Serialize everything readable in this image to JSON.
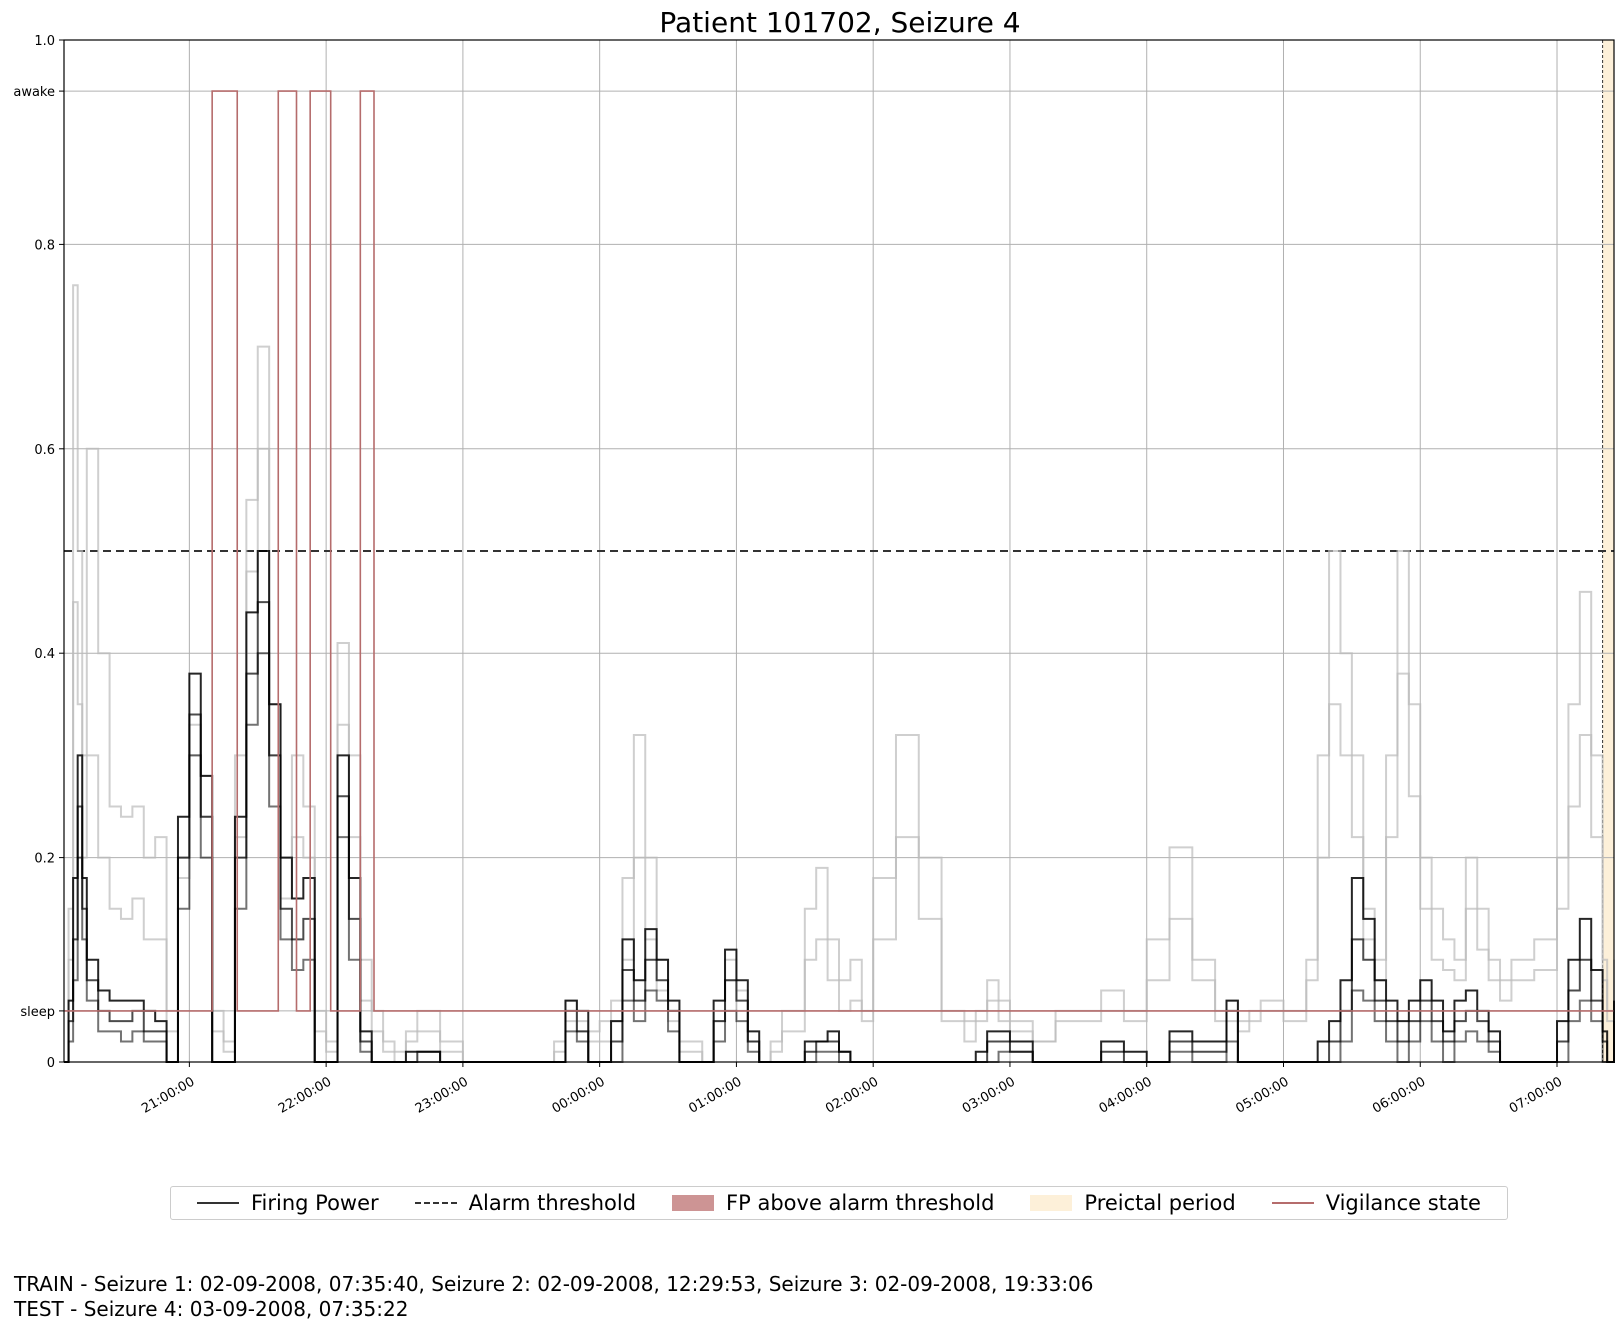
{
  "chart_data": {
    "type": "line",
    "title": "Patient 101702, Seizure 4",
    "xlabel": "",
    "ylabel": "",
    "x_ticks": [
      "21:00:00",
      "22:00:00",
      "23:00:00",
      "00:00:00",
      "01:00:00",
      "02:00:00",
      "03:00:00",
      "04:00:00",
      "05:00:00",
      "06:00:00",
      "07:00:00"
    ],
    "x_range": [
      "20:05:00",
      "07:25:00"
    ],
    "y_ticks": [
      {
        "value": 0,
        "label": "0"
      },
      {
        "value": 0.05,
        "label": "sleep"
      },
      {
        "value": 0.2,
        "label": "0.2"
      },
      {
        "value": 0.4,
        "label": "0.4"
      },
      {
        "value": 0.6,
        "label": "0.6"
      },
      {
        "value": 0.8,
        "label": "0.8"
      },
      {
        "value": 0.95,
        "label": "awake"
      },
      {
        "value": 1.0,
        "label": "1.0"
      }
    ],
    "ylim": [
      0,
      1
    ],
    "grid": true,
    "legend_position": "bottom-center",
    "alarm_threshold": 0.5,
    "preictal_period": {
      "start": "07:20:00",
      "end": "07:25:00"
    },
    "series": [
      {
        "name": "Firing Power",
        "times": [
          "20:05",
          "20:07",
          "20:09",
          "20:11",
          "20:13",
          "20:15",
          "20:20",
          "20:25",
          "20:30",
          "20:35",
          "20:40",
          "20:45",
          "20:50",
          "20:55",
          "21:00",
          "21:05",
          "21:10",
          "21:15",
          "21:20",
          "21:25",
          "21:30",
          "21:35",
          "21:40",
          "21:45",
          "21:50",
          "21:55",
          "22:00",
          "22:05",
          "22:10",
          "22:15",
          "22:20",
          "22:25",
          "22:30",
          "22:35",
          "22:40",
          "22:50",
          "23:00",
          "23:20",
          "23:40",
          "23:45",
          "23:50",
          "23:55",
          "00:00",
          "00:05",
          "00:10",
          "00:15",
          "00:20",
          "00:25",
          "00:30",
          "00:35",
          "00:40",
          "00:45",
          "00:50",
          "00:55",
          "01:00",
          "01:05",
          "01:10",
          "01:15",
          "01:20",
          "01:30",
          "01:35",
          "01:40",
          "01:45",
          "01:50",
          "01:55",
          "02:00",
          "02:10",
          "02:20",
          "02:30",
          "02:40",
          "02:45",
          "02:50",
          "02:55",
          "03:00",
          "03:10",
          "03:20",
          "03:40",
          "03:50",
          "04:00",
          "04:10",
          "04:20",
          "04:30",
          "04:35",
          "04:40",
          "04:45",
          "04:50",
          "05:00",
          "05:10",
          "05:15",
          "05:20",
          "05:25",
          "05:30",
          "05:35",
          "05:40",
          "05:45",
          "05:50",
          "05:55",
          "06:00",
          "06:05",
          "06:10",
          "06:15",
          "06:20",
          "06:25",
          "06:30",
          "06:35",
          "06:40",
          "06:50",
          "07:00",
          "07:05",
          "07:10",
          "07:15",
          "07:20",
          "07:22",
          "07:25"
        ],
        "runs": [
          [
            0.0,
            0.02,
            0.08,
            0.2,
            0.12,
            0.06,
            0.03,
            0.03,
            0.02,
            0.03,
            0.02,
            0.02,
            0.0,
            0.15,
            0.3,
            0.2,
            0.0,
            0.0,
            0.15,
            0.33,
            0.4,
            0.25,
            0.12,
            0.09,
            0.1,
            0.0,
            0.0,
            0.22,
            0.1,
            0.01,
            0.0,
            0.0,
            0.0,
            0.0,
            0.0,
            0.0,
            0.0,
            0.0,
            0.0,
            0.03,
            0.02,
            0.0,
            0.0,
            0.0,
            0.06,
            0.04,
            0.07,
            0.06,
            0.03,
            0.0,
            0.0,
            0.0,
            0.02,
            0.05,
            0.04,
            0.01,
            0.0,
            0.0,
            0.0,
            0.0,
            0.01,
            0.01,
            0.0,
            0.0,
            0.0,
            0.0,
            0.0,
            0.0,
            0.0,
            0.0,
            0.0,
            0.0,
            0.01,
            0.01,
            0.0,
            0.0,
            0.0,
            0.0,
            0.0,
            0.01,
            0.0,
            0.0,
            0.02,
            0.0,
            0.0,
            0.0,
            0.0,
            0.0,
            0.0,
            0.0,
            0.02,
            0.07,
            0.06,
            0.04,
            0.02,
            0.0,
            0.02,
            0.04,
            0.02,
            0.0,
            0.02,
            0.03,
            0.02,
            0.01,
            0.0,
            0.0,
            0.0,
            0.0,
            0.04,
            0.06,
            0.04,
            0.0,
            0.0,
            0.02
          ],
          [
            0.0,
            0.04,
            0.12,
            0.25,
            0.15,
            0.08,
            0.05,
            0.04,
            0.04,
            0.05,
            0.03,
            0.03,
            0.0,
            0.2,
            0.34,
            0.24,
            0.0,
            0.0,
            0.2,
            0.38,
            0.45,
            0.3,
            0.15,
            0.12,
            0.14,
            0.0,
            0.0,
            0.26,
            0.14,
            0.02,
            0.0,
            0.0,
            0.0,
            0.0,
            0.01,
            0.0,
            0.0,
            0.0,
            0.0,
            0.05,
            0.03,
            0.0,
            0.0,
            0.02,
            0.09,
            0.06,
            0.1,
            0.08,
            0.05,
            0.0,
            0.0,
            0.0,
            0.04,
            0.08,
            0.06,
            0.02,
            0.0,
            0.0,
            0.0,
            0.01,
            0.02,
            0.02,
            0.01,
            0.0,
            0.0,
            0.0,
            0.0,
            0.0,
            0.0,
            0.0,
            0.0,
            0.02,
            0.02,
            0.01,
            0.0,
            0.0,
            0.01,
            0.0,
            0.0,
            0.02,
            0.01,
            0.01,
            0.05,
            0.0,
            0.0,
            0.0,
            0.0,
            0.0,
            0.0,
            0.02,
            0.05,
            0.12,
            0.1,
            0.06,
            0.04,
            0.02,
            0.04,
            0.06,
            0.04,
            0.02,
            0.04,
            0.05,
            0.04,
            0.02,
            0.0,
            0.0,
            0.0,
            0.02,
            0.07,
            0.1,
            0.06,
            0.02,
            0.0,
            0.04
          ],
          [
            0.0,
            0.06,
            0.18,
            0.3,
            0.18,
            0.1,
            0.07,
            0.06,
            0.06,
            0.06,
            0.05,
            0.04,
            0.0,
            0.24,
            0.38,
            0.28,
            0.0,
            0.0,
            0.24,
            0.44,
            0.5,
            0.35,
            0.2,
            0.16,
            0.18,
            0.0,
            0.0,
            0.3,
            0.18,
            0.03,
            0.0,
            0.0,
            0.0,
            0.01,
            0.01,
            0.0,
            0.0,
            0.0,
            0.0,
            0.06,
            0.05,
            0.0,
            0.0,
            0.04,
            0.12,
            0.08,
            0.13,
            0.1,
            0.06,
            0.0,
            0.0,
            0.0,
            0.06,
            0.11,
            0.08,
            0.03,
            0.0,
            0.0,
            0.0,
            0.02,
            0.02,
            0.03,
            0.01,
            0.0,
            0.0,
            0.0,
            0.0,
            0.0,
            0.0,
            0.0,
            0.01,
            0.03,
            0.03,
            0.02,
            0.0,
            0.0,
            0.02,
            0.01,
            0.0,
            0.03,
            0.02,
            0.02,
            0.06,
            0.0,
            0.0,
            0.0,
            0.0,
            0.0,
            0.02,
            0.04,
            0.08,
            0.18,
            0.14,
            0.08,
            0.06,
            0.04,
            0.06,
            0.08,
            0.06,
            0.03,
            0.06,
            0.07,
            0.05,
            0.03,
            0.0,
            0.0,
            0.0,
            0.04,
            0.1,
            0.14,
            0.09,
            0.03,
            0.0,
            0.06
          ]
        ]
      },
      {
        "name": "",
        "light_runs": [
          [
            0.0,
            0.15,
            0.76,
            0.5,
            0.3,
            0.6,
            0.4,
            0.25,
            0.24,
            0.25,
            0.2,
            0.22,
            0.05,
            0.2,
            0.33,
            0.28,
            0.05,
            0.02,
            0.3,
            0.55,
            0.7,
            0.35,
            0.2,
            0.3,
            0.25,
            0.05,
            0.02,
            0.41,
            0.3,
            0.1,
            0.05,
            0.02,
            0.01,
            0.03,
            0.05,
            0.02,
            0.0,
            0.0,
            0.02,
            0.06,
            0.04,
            0.03,
            0.04,
            0.06,
            0.18,
            0.32,
            0.2,
            0.1,
            0.05,
            0.02,
            0.02,
            0.0,
            0.05,
            0.1,
            0.07,
            0.02,
            0.0,
            0.02,
            0.05,
            0.15,
            0.19,
            0.12,
            0.08,
            0.1,
            0.05,
            0.18,
            0.32,
            0.2,
            0.05,
            0.04,
            0.05,
            0.08,
            0.06,
            0.04,
            0.02,
            0.05,
            0.07,
            0.05,
            0.12,
            0.21,
            0.1,
            0.05,
            0.06,
            0.04,
            0.05,
            0.06,
            0.05,
            0.1,
            0.3,
            0.5,
            0.4,
            0.3,
            0.15,
            0.1,
            0.3,
            0.5,
            0.35,
            0.2,
            0.15,
            0.12,
            0.1,
            0.2,
            0.15,
            0.1,
            0.08,
            0.1,
            0.12,
            0.2,
            0.35,
            0.46,
            0.3,
            0.1,
            0.05,
            0.1
          ],
          [
            0.0,
            0.1,
            0.45,
            0.35,
            0.2,
            0.3,
            0.2,
            0.15,
            0.14,
            0.16,
            0.12,
            0.12,
            0.03,
            0.18,
            0.3,
            0.24,
            0.03,
            0.01,
            0.22,
            0.48,
            0.6,
            0.3,
            0.16,
            0.22,
            0.2,
            0.03,
            0.01,
            0.33,
            0.22,
            0.06,
            0.03,
            0.01,
            0.0,
            0.02,
            0.03,
            0.01,
            0.0,
            0.0,
            0.01,
            0.04,
            0.03,
            0.02,
            0.02,
            0.04,
            0.1,
            0.2,
            0.12,
            0.07,
            0.04,
            0.01,
            0.01,
            0.0,
            0.04,
            0.08,
            0.05,
            0.02,
            0.0,
            0.01,
            0.03,
            0.1,
            0.12,
            0.08,
            0.05,
            0.06,
            0.04,
            0.12,
            0.22,
            0.14,
            0.04,
            0.02,
            0.04,
            0.06,
            0.04,
            0.03,
            0.02,
            0.04,
            0.05,
            0.04,
            0.08,
            0.14,
            0.08,
            0.04,
            0.04,
            0.03,
            0.04,
            0.05,
            0.04,
            0.08,
            0.2,
            0.35,
            0.3,
            0.22,
            0.12,
            0.08,
            0.22,
            0.38,
            0.26,
            0.15,
            0.1,
            0.09,
            0.08,
            0.15,
            0.11,
            0.08,
            0.06,
            0.08,
            0.09,
            0.15,
            0.25,
            0.32,
            0.22,
            0.08,
            0.04,
            0.08
          ]
        ]
      },
      {
        "name": "Vigilance state",
        "steps": [
          {
            "t": "20:05",
            "state": "sleep"
          },
          {
            "t": "21:10",
            "state": "awake"
          },
          {
            "t": "21:21",
            "state": "sleep"
          },
          {
            "t": "21:39",
            "state": "awake"
          },
          {
            "t": "21:47",
            "state": "sleep"
          },
          {
            "t": "21:53",
            "state": "awake"
          },
          {
            "t": "22:02",
            "state": "sleep"
          },
          {
            "t": "22:15",
            "state": "awake"
          },
          {
            "t": "22:21",
            "state": "sleep"
          },
          {
            "t": "07:25",
            "state": "sleep"
          }
        ]
      }
    ],
    "legend": [
      "Firing Power",
      "Alarm threshold",
      "FP above alarm threshold",
      "Preictal period",
      "Vigilance state"
    ]
  },
  "colors": {
    "firing_power": "#000000",
    "firing_power_light": "#bbbbbb",
    "threshold": "#333333",
    "fp_above": "#cd9494",
    "preictal": "#fdf0d9",
    "vigilance": "#b56c6c",
    "grid": "#b0b0b0"
  },
  "footer": {
    "train": "TRAIN - Seizure 1: 02-09-2008, 07:35:40, Seizure 2: 02-09-2008, 12:29:53, Seizure 3: 02-09-2008, 19:33:06",
    "test": "TEST - Seizure 4: 03-09-2008, 07:35:22"
  }
}
